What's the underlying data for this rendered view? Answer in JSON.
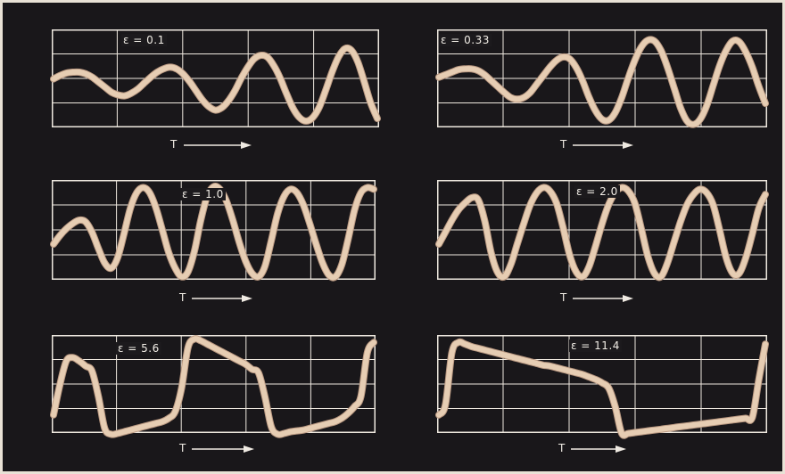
{
  "chart_data": [
    {
      "type": "line",
      "title": "ε = 0.1",
      "xlabel": "T",
      "grid": true,
      "series": [
        {
          "x": [
            0.0,
            0.02,
            0.04,
            0.06,
            0.08,
            0.1,
            0.12,
            0.14,
            0.16,
            0.18,
            0.2,
            0.22,
            0.24,
            0.26,
            0.28,
            0.3,
            0.32,
            0.34,
            0.36,
            0.38,
            0.4,
            0.42,
            0.44,
            0.46,
            0.48,
            0.5,
            0.52,
            0.54,
            0.56,
            0.58,
            0.6,
            0.62,
            0.64,
            0.66,
            0.68,
            0.7,
            0.72,
            0.74,
            0.76,
            0.78,
            0.8,
            0.82,
            0.84,
            0.86,
            0.88,
            0.9,
            0.92,
            0.94,
            0.96,
            0.98,
            1.0
          ],
          "y": [
            0.54,
            0.58,
            0.61,
            0.62,
            0.62,
            0.6,
            0.56,
            0.5,
            0.44,
            0.38,
            0.35,
            0.34,
            0.37,
            0.42,
            0.49,
            0.56,
            0.62,
            0.66,
            0.68,
            0.66,
            0.6,
            0.51,
            0.4,
            0.29,
            0.21,
            0.17,
            0.2,
            0.28,
            0.4,
            0.55,
            0.68,
            0.78,
            0.82,
            0.8,
            0.7,
            0.55,
            0.36,
            0.19,
            0.08,
            0.04,
            0.08,
            0.2,
            0.4,
            0.62,
            0.8,
            0.9,
            0.88,
            0.74,
            0.5,
            0.25,
            0.07
          ]
        }
      ]
    },
    {
      "type": "line",
      "title": "ε = 0.33",
      "xlabel": "T",
      "grid": true,
      "series": [
        {
          "x": [
            0.0,
            0.02,
            0.04,
            0.06,
            0.08,
            0.1,
            0.12,
            0.14,
            0.16,
            0.18,
            0.2,
            0.22,
            0.24,
            0.26,
            0.28,
            0.3,
            0.32,
            0.34,
            0.36,
            0.38,
            0.4,
            0.42,
            0.44,
            0.46,
            0.48,
            0.5,
            0.52,
            0.54,
            0.56,
            0.58,
            0.6,
            0.62,
            0.64,
            0.66,
            0.68,
            0.7,
            0.72,
            0.74,
            0.76,
            0.78,
            0.8,
            0.82,
            0.84,
            0.86,
            0.88,
            0.9,
            0.92,
            0.94,
            0.96,
            0.98,
            1.0
          ],
          "y": [
            0.56,
            0.59,
            0.62,
            0.65,
            0.66,
            0.66,
            0.64,
            0.59,
            0.52,
            0.45,
            0.38,
            0.32,
            0.3,
            0.32,
            0.38,
            0.48,
            0.58,
            0.68,
            0.76,
            0.8,
            0.78,
            0.68,
            0.52,
            0.32,
            0.16,
            0.06,
            0.05,
            0.14,
            0.32,
            0.55,
            0.76,
            0.92,
            1.0,
            0.99,
            0.88,
            0.68,
            0.44,
            0.2,
            0.04,
            0.0,
            0.06,
            0.22,
            0.46,
            0.7,
            0.88,
            0.99,
            0.98,
            0.86,
            0.68,
            0.45,
            0.25
          ]
        }
      ]
    },
    {
      "type": "line",
      "title": "ε = 1.0",
      "xlabel": "T",
      "grid": true,
      "series": [
        {
          "x": [
            0.0,
            0.02,
            0.04,
            0.06,
            0.08,
            0.1,
            0.12,
            0.14,
            0.16,
            0.18,
            0.2,
            0.22,
            0.24,
            0.26,
            0.28,
            0.3,
            0.32,
            0.34,
            0.36,
            0.38,
            0.4,
            0.42,
            0.44,
            0.46,
            0.48,
            0.5,
            0.52,
            0.54,
            0.56,
            0.58,
            0.6,
            0.62,
            0.64,
            0.66,
            0.68,
            0.7,
            0.72,
            0.74,
            0.76,
            0.78,
            0.8,
            0.82,
            0.84,
            0.86,
            0.88,
            0.9,
            0.92,
            0.94,
            0.96,
            0.98,
            1.0
          ],
          "y": [
            0.38,
            0.48,
            0.56,
            0.62,
            0.66,
            0.64,
            0.52,
            0.33,
            0.16,
            0.1,
            0.22,
            0.5,
            0.8,
            0.98,
            1.04,
            0.98,
            0.8,
            0.54,
            0.28,
            0.1,
            0.0,
            0.06,
            0.3,
            0.66,
            0.94,
            1.05,
            1.02,
            0.88,
            0.66,
            0.4,
            0.18,
            0.04,
            0.0,
            0.12,
            0.42,
            0.74,
            0.94,
            1.02,
            0.98,
            0.84,
            0.62,
            0.38,
            0.16,
            0.02,
            0.0,
            0.14,
            0.44,
            0.78,
            0.98,
            1.04,
            1.02
          ]
        }
      ]
    },
    {
      "type": "line",
      "title": "ε = 2.0",
      "xlabel": "T",
      "grid": true,
      "series": [
        {
          "x": [
            0.0,
            0.02,
            0.04,
            0.06,
            0.08,
            0.1,
            0.12,
            0.14,
            0.16,
            0.18,
            0.2,
            0.22,
            0.24,
            0.26,
            0.28,
            0.3,
            0.32,
            0.34,
            0.36,
            0.38,
            0.4,
            0.42,
            0.44,
            0.46,
            0.48,
            0.5,
            0.52,
            0.54,
            0.56,
            0.58,
            0.6,
            0.62,
            0.64,
            0.66,
            0.68,
            0.7,
            0.72,
            0.74,
            0.76,
            0.78,
            0.8,
            0.82,
            0.84,
            0.86,
            0.88,
            0.9,
            0.92,
            0.94,
            0.96,
            0.98,
            1.0
          ],
          "y": [
            0.38,
            0.52,
            0.66,
            0.78,
            0.86,
            0.92,
            0.9,
            0.66,
            0.28,
            0.05,
            0.0,
            0.14,
            0.38,
            0.62,
            0.84,
            0.98,
            1.04,
            1.0,
            0.86,
            0.58,
            0.26,
            0.06,
            0.0,
            0.12,
            0.36,
            0.62,
            0.84,
            0.98,
            1.04,
            1.0,
            0.86,
            0.56,
            0.24,
            0.04,
            0.0,
            0.16,
            0.4,
            0.64,
            0.84,
            0.96,
            1.02,
            0.98,
            0.84,
            0.54,
            0.22,
            0.04,
            0.04,
            0.22,
            0.5,
            0.8,
            0.96
          ]
        }
      ]
    },
    {
      "type": "line",
      "title": "ε = 5.6",
      "xlabel": "T",
      "grid": true,
      "series": [
        {
          "x": [
            0.0,
            0.02,
            0.04,
            0.06,
            0.08,
            0.1,
            0.12,
            0.14,
            0.16,
            0.18,
            0.2,
            0.22,
            0.24,
            0.26,
            0.28,
            0.3,
            0.32,
            0.34,
            0.36,
            0.38,
            0.4,
            0.42,
            0.44,
            0.46,
            0.48,
            0.5,
            0.52,
            0.54,
            0.56,
            0.58,
            0.6,
            0.62,
            0.64,
            0.66,
            0.68,
            0.7,
            0.72,
            0.74,
            0.76,
            0.78,
            0.8,
            0.82,
            0.84,
            0.86,
            0.88,
            0.9,
            0.92,
            0.94,
            0.96,
            0.98,
            1.0
          ],
          "y": [
            0.18,
            0.54,
            0.82,
            0.86,
            0.82,
            0.76,
            0.7,
            0.4,
            0.02,
            -0.05,
            -0.04,
            -0.02,
            0.0,
            0.02,
            0.04,
            0.06,
            0.08,
            0.1,
            0.14,
            0.22,
            0.5,
            0.98,
            1.08,
            1.06,
            1.02,
            0.98,
            0.94,
            0.9,
            0.86,
            0.82,
            0.78,
            0.72,
            0.68,
            0.4,
            0.04,
            -0.05,
            -0.04,
            -0.02,
            -0.01,
            0.0,
            0.02,
            0.04,
            0.06,
            0.08,
            0.1,
            0.14,
            0.2,
            0.28,
            0.4,
            0.92,
            1.04
          ]
        }
      ]
    },
    {
      "type": "line",
      "title": "ε = 11.4",
      "xlabel": "T",
      "grid": true,
      "series": [
        {
          "x": [
            0.0,
            0.02,
            0.04,
            0.06,
            0.08,
            0.1,
            0.12,
            0.14,
            0.16,
            0.18,
            0.2,
            0.22,
            0.24,
            0.26,
            0.28,
            0.3,
            0.32,
            0.34,
            0.36,
            0.38,
            0.4,
            0.42,
            0.44,
            0.46,
            0.48,
            0.5,
            0.52,
            0.54,
            0.56,
            0.58,
            0.6,
            0.62,
            0.64,
            0.66,
            0.68,
            0.7,
            0.72,
            0.74,
            0.76,
            0.78,
            0.8,
            0.82,
            0.84,
            0.86,
            0.88,
            0.9,
            0.92,
            0.94,
            0.96,
            0.98,
            1.0
          ],
          "y": [
            0.18,
            0.3,
            0.92,
            1.04,
            1.02,
            0.99,
            0.97,
            0.95,
            0.93,
            0.91,
            0.89,
            0.87,
            0.85,
            0.83,
            0.81,
            0.79,
            0.77,
            0.76,
            0.74,
            0.72,
            0.7,
            0.68,
            0.66,
            0.63,
            0.6,
            0.56,
            0.5,
            0.28,
            -0.04,
            -0.04,
            -0.03,
            -0.02,
            -0.01,
            0.0,
            0.01,
            0.02,
            0.03,
            0.04,
            0.05,
            0.06,
            0.07,
            0.08,
            0.09,
            0.1,
            0.11,
            0.12,
            0.13,
            0.14,
            0.15,
            0.6,
            1.02
          ]
        }
      ]
    }
  ]
}
